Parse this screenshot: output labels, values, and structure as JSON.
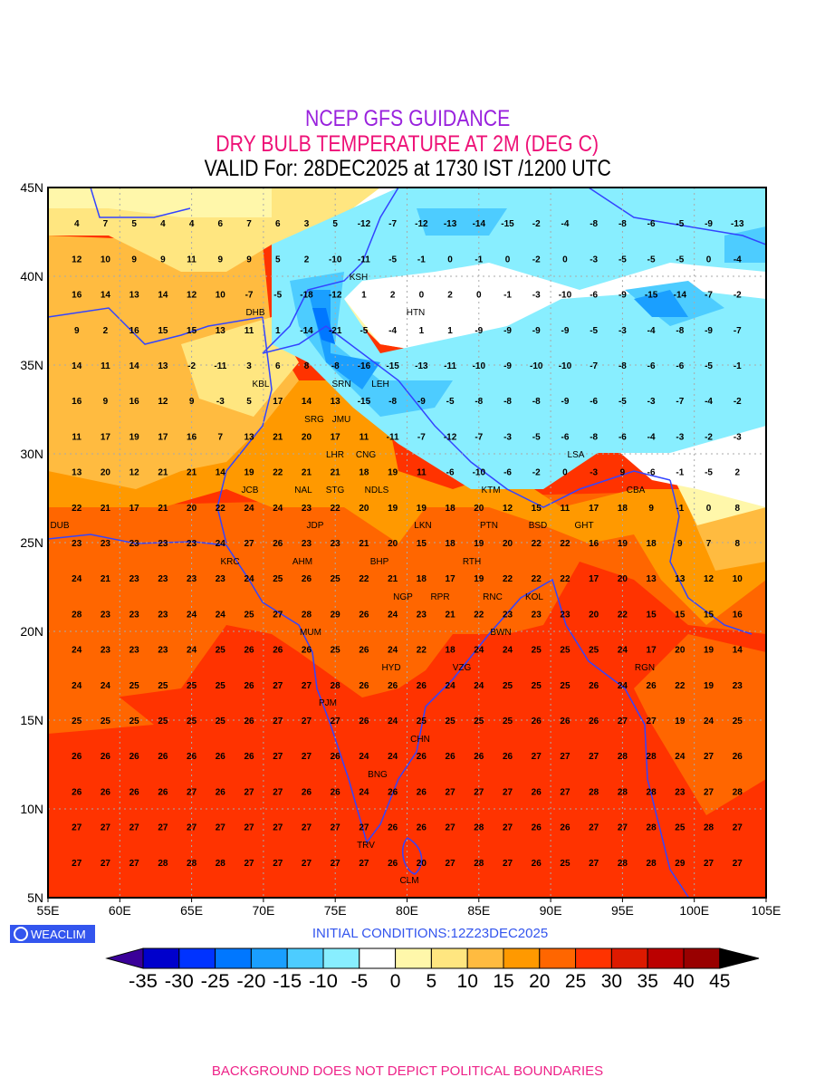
{
  "header": {
    "line1": "NCEP GFS GUIDANCE",
    "line2": "DRY BULB TEMPERATURE AT 2M (DEG C)",
    "line3": "VALID For: 28DEC2025 at 1730 IST /1200 UTC"
  },
  "colors": {
    "line1": "#9922dd",
    "line2": "#ee1177",
    "line3": "#000000",
    "coast": "#3344ff",
    "grid": "#aaaaaa"
  },
  "axes": {
    "lat_labels": [
      "45N",
      "40N",
      "35N",
      "30N",
      "25N",
      "20N",
      "15N",
      "10N",
      "5N"
    ],
    "lon_labels": [
      "55E",
      "60E",
      "65E",
      "70E",
      "75E",
      "80E",
      "85E",
      "90E",
      "95E",
      "100E",
      "105E"
    ]
  },
  "logo": {
    "text": "WEACLIM",
    "icon": "weaclim-logo-icon"
  },
  "initial_conditions": "INITIAL CONDITIONS:12Z23DEC2025",
  "colorbar": {
    "labels": [
      "-35",
      "-30",
      "-25",
      "-20",
      "-15",
      "-10",
      "-5",
      "0",
      "5",
      "10",
      "15",
      "20",
      "25",
      "30",
      "35",
      "40",
      "45"
    ],
    "colors": [
      "#3a0099",
      "#0000cc",
      "#0033ff",
      "#0077ff",
      "#1a9fff",
      "#4dccff",
      "#88eeff",
      "#ffffff",
      "#fff7aa",
      "#ffe680",
      "#ffbb40",
      "#ff9900",
      "#ff6600",
      "#ff3300",
      "#dd1a00",
      "#bb0000",
      "#990000",
      "#000000"
    ]
  },
  "footer": "BACKGROUND DOES NOT DEPICT POLITICAL BOUNDARIES",
  "grid_values": {
    "lons": [
      57,
      59,
      61,
      63,
      65,
      67,
      69,
      71,
      73,
      75,
      77,
      79,
      81,
      83,
      85,
      87,
      89,
      91,
      93,
      95,
      97,
      99,
      101,
      103
    ],
    "lats": [
      43,
      41,
      39,
      37,
      35,
      33,
      31,
      29,
      27,
      25,
      23,
      21,
      19,
      17,
      15,
      13,
      11,
      9,
      7
    ],
    "rows": [
      [
        4,
        7,
        5,
        4,
        4,
        6,
        7,
        6,
        3,
        5,
        -12,
        -7,
        -12,
        -13,
        -14,
        -15,
        -2,
        -4,
        -8,
        -8,
        -6,
        -5,
        -9,
        -13
      ],
      [
        12,
        10,
        9,
        9,
        11,
        9,
        9,
        5,
        2,
        -10,
        -11,
        -5,
        -1,
        0,
        -1,
        0,
        -2,
        0,
        -3,
        -5,
        -5,
        -5,
        0,
        -4
      ],
      [
        16,
        14,
        13,
        14,
        12,
        10,
        -7,
        -5,
        -18,
        -12,
        1,
        2,
        0,
        2,
        0,
        -1,
        -3,
        -10,
        -6,
        -9,
        -15,
        -14,
        -7,
        -2
      ],
      [
        9,
        2,
        16,
        15,
        15,
        13,
        11,
        1,
        -14,
        -21,
        -5,
        -4,
        1,
        1,
        -9,
        -9,
        -9,
        -9,
        -5,
        -3,
        -4,
        -8,
        -9,
        -7
      ],
      [
        14,
        11,
        14,
        13,
        -2,
        -11,
        3,
        6,
        8,
        -8,
        -16,
        -15,
        -13,
        -11,
        -10,
        -9,
        -10,
        -10,
        -7,
        -8,
        -6,
        -6,
        -5,
        -1
      ],
      [
        16,
        9,
        16,
        12,
        9,
        -3,
        5,
        17,
        14,
        13,
        -15,
        -8,
        -9,
        -5,
        -8,
        -8,
        -8,
        -9,
        -6,
        -5,
        -3,
        -7,
        -4,
        -2
      ],
      [
        11,
        17,
        19,
        17,
        16,
        7,
        13,
        21,
        20,
        17,
        11,
        -11,
        -7,
        -12,
        -7,
        -3,
        -5,
        -6,
        -8,
        -6,
        -4,
        -3,
        -2,
        -3
      ],
      [
        13,
        20,
        12,
        21,
        21,
        14,
        19,
        22,
        21,
        21,
        18,
        19,
        11,
        -6,
        -10,
        -6,
        -2,
        0,
        -3,
        9,
        -6,
        -1,
        -5,
        2
      ],
      [
        22,
        21,
        17,
        21,
        20,
        22,
        24,
        24,
        23,
        22,
        20,
        19,
        19,
        18,
        20,
        12,
        15,
        11,
        17,
        18,
        9,
        -1,
        0,
        8
      ],
      [
        23,
        23,
        23,
        23,
        23,
        24,
        27,
        26,
        23,
        23,
        21,
        20,
        15,
        18,
        19,
        20,
        22,
        22,
        16,
        19,
        18,
        9,
        7,
        8
      ],
      [
        24,
        21,
        23,
        23,
        23,
        23,
        24,
        25,
        26,
        25,
        22,
        21,
        18,
        17,
        19,
        22,
        22,
        22,
        17,
        20,
        13,
        13,
        12,
        10
      ],
      [
        28,
        23,
        23,
        23,
        24,
        24,
        25,
        27,
        28,
        29,
        26,
        24,
        23,
        21,
        22,
        23,
        23,
        23,
        20,
        22,
        15,
        15,
        15,
        16
      ],
      [
        24,
        23,
        23,
        23,
        24,
        25,
        26,
        26,
        26,
        25,
        26,
        24,
        22,
        18,
        24,
        24,
        25,
        25,
        25,
        24,
        17,
        20,
        19,
        14
      ],
      [
        24,
        24,
        25,
        25,
        25,
        25,
        26,
        27,
        27,
        28,
        26,
        26,
        26,
        24,
        24,
        25,
        25,
        25,
        26,
        24,
        26,
        22,
        19,
        23
      ],
      [
        25,
        25,
        25,
        25,
        25,
        25,
        26,
        27,
        27,
        27,
        26,
        24,
        25,
        25,
        25,
        25,
        26,
        26,
        26,
        27,
        27,
        19,
        24,
        25
      ],
      [
        26,
        26,
        26,
        26,
        26,
        26,
        26,
        27,
        27,
        26,
        24,
        24,
        26,
        26,
        26,
        26,
        27,
        27,
        27,
        28,
        28,
        24,
        27,
        26
      ],
      [
        26,
        26,
        26,
        26,
        27,
        26,
        27,
        27,
        26,
        26,
        24,
        26,
        26,
        27,
        27,
        27,
        26,
        27,
        28,
        28,
        28,
        23,
        27,
        28
      ],
      [
        27,
        27,
        27,
        27,
        27,
        27,
        27,
        27,
        27,
        27,
        27,
        26,
        26,
        27,
        28,
        27,
        26,
        26,
        27,
        27,
        28,
        25,
        28,
        27
      ],
      [
        27,
        27,
        27,
        28,
        28,
        28,
        27,
        27,
        27,
        27,
        27,
        26,
        20,
        27,
        28,
        27,
        26,
        25,
        27,
        28,
        28,
        29,
        27,
        27
      ]
    ]
  },
  "stations": [
    "DHB",
    "KSH",
    "HTN",
    "KBL",
    "SRN",
    "LEH",
    "JMU",
    "SRG",
    "LHR",
    "CNG",
    "LSA",
    "STG",
    "NDLS",
    "JCB",
    "NAL",
    "KTM",
    "BSD",
    "GHT",
    "CBA",
    "LKN",
    "JDP",
    "DUB",
    "PTN",
    "KRC",
    "RTH",
    "RNC",
    "AHM",
    "BHP",
    "KOL",
    "NGP",
    "RPR",
    "BWN",
    "MUM",
    "HYD",
    "VZG",
    "RGN",
    "PJM",
    "CHN",
    "BNG",
    "TRV",
    "CLM"
  ]
}
